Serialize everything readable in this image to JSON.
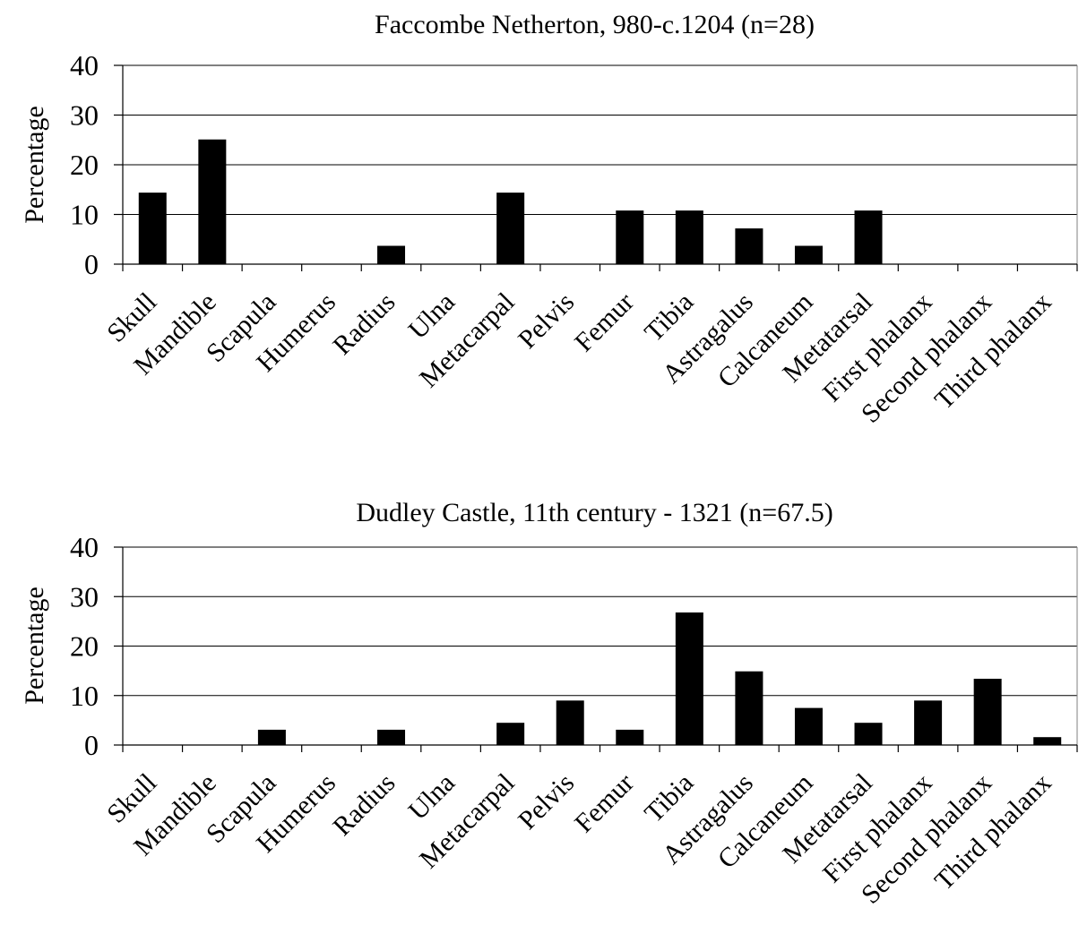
{
  "chart_data": [
    {
      "type": "bar",
      "title": "Faccombe Netherton, 980-c.1204 (n=28)",
      "xlabel": "",
      "ylabel": "Percentage",
      "ylim": [
        0,
        40
      ],
      "yticks": [
        0,
        10,
        20,
        30,
        40
      ],
      "grid": true,
      "bar_color": "#000000",
      "categories": [
        "Skull",
        "Mandible",
        "Scapula",
        "Humerus",
        "Radius",
        "Ulna",
        "Metacarpal",
        "Pelvis",
        "Femur",
        "Tibia",
        "Astragalus",
        "Calcaneum",
        "Metatarsal",
        "First phalanx",
        "Second phalanx",
        "Third phalanx"
      ],
      "values": [
        14.3,
        25.0,
        0,
        0,
        3.6,
        0,
        14.3,
        0,
        10.7,
        10.7,
        7.1,
        3.6,
        10.7,
        0,
        0,
        0
      ]
    },
    {
      "type": "bar",
      "title": "Dudley Castle, 11th century - 1321 (n=67.5)",
      "xlabel": "",
      "ylabel": "Percentage",
      "ylim": [
        0,
        40
      ],
      "yticks": [
        0,
        10,
        20,
        30,
        40
      ],
      "grid": true,
      "bar_color": "#000000",
      "categories": [
        "Skull",
        "Mandible",
        "Scapula",
        "Humerus",
        "Radius",
        "Ulna",
        "Metacarpal",
        "Pelvis",
        "Femur",
        "Tibia",
        "Astragalus",
        "Calcaneum",
        "Metatarsal",
        "First phalanx",
        "Second phalanx",
        "Third phalanx"
      ],
      "values": [
        0,
        0,
        3.0,
        0,
        3.0,
        0,
        4.4,
        8.9,
        3.0,
        26.7,
        14.8,
        7.4,
        4.4,
        8.9,
        13.3,
        1.5
      ]
    }
  ]
}
